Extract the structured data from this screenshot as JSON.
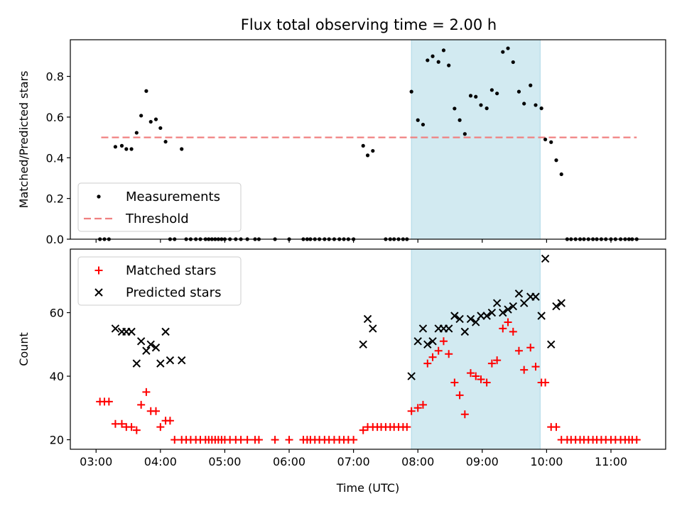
{
  "title": "Flux total observing time = 2.00 h",
  "colors": {
    "band": "#add8e6",
    "threshold": "#f08080",
    "matched": "#ff0000",
    "predicted": "#000000",
    "measure": "#000000"
  },
  "chart_data": [
    {
      "type": "scatter",
      "ylabel": "Matched/Predicted stars",
      "ylim": [
        0,
        0.98
      ],
      "yticks": [
        "0.0",
        "0.2",
        "0.4",
        "0.6",
        "0.8"
      ],
      "ytick_values": [
        0,
        0.2,
        0.4,
        0.6,
        0.8
      ],
      "xlim": [
        2.6,
        11.85
      ],
      "highlight_band": [
        7.9,
        9.9
      ],
      "legend": {
        "position": "lower-left",
        "entries": [
          "Measurements",
          "Threshold"
        ]
      },
      "threshold": {
        "name": "Threshold",
        "value": 0.5,
        "x_range": [
          3.08,
          11.4
        ]
      },
      "series": [
        {
          "name": "Measurements",
          "x": [
            3.06,
            3.13,
            3.2,
            3.3,
            3.4,
            3.47,
            3.55,
            3.63,
            3.7,
            3.78,
            3.85,
            3.93,
            4.0,
            4.08,
            4.15,
            4.22,
            4.33,
            4.4,
            4.47,
            4.55,
            4.62,
            4.7,
            4.75,
            4.8,
            4.85,
            4.9,
            4.95,
            5.0,
            5.08,
            5.17,
            5.25,
            5.35,
            5.47,
            5.53,
            5.78,
            6.0,
            6.22,
            6.28,
            6.33,
            6.4,
            6.47,
            6.55,
            6.62,
            6.7,
            6.78,
            6.85,
            6.92,
            7.0,
            7.15,
            7.22,
            7.3,
            7.5,
            7.57,
            7.63,
            7.7,
            7.77,
            7.83,
            7.9,
            8.0,
            8.08,
            8.15,
            8.23,
            8.32,
            8.4,
            8.48,
            8.57,
            8.65,
            8.73,
            8.82,
            8.9,
            8.98,
            9.07,
            9.15,
            9.23,
            9.32,
            9.4,
            9.48,
            9.57,
            9.65,
            9.75,
            9.83,
            9.92,
            9.98,
            10.07,
            10.15,
            10.23,
            10.32,
            10.38,
            10.45,
            10.52,
            10.58,
            10.65,
            10.72,
            10.78,
            10.85,
            10.92,
            11.0,
            11.07,
            11.15,
            11.22,
            11.28,
            11.33,
            11.4
          ],
          "y": [
            0,
            0,
            0,
            0.454,
            0.459,
            0.443,
            0.443,
            0.523,
            0.607,
            0.728,
            0.577,
            0.589,
            0.546,
            0.479,
            0,
            0,
            0.443,
            0,
            0,
            0,
            0,
            0,
            0,
            0,
            0,
            0,
            0,
            0,
            0,
            0,
            0,
            0,
            0,
            0,
            0,
            0,
            0,
            0,
            0,
            0,
            0,
            0,
            0,
            0,
            0,
            0,
            0,
            0,
            0.459,
            0.412,
            0.434,
            0,
            0,
            0,
            0,
            0,
            0,
            0.725,
            0.585,
            0.563,
            0.879,
            0.899,
            0.871,
            0.928,
            0.854,
            0.642,
            0.585,
            0.517,
            0.705,
            0.7,
            0.659,
            0.643,
            0.733,
            0.716,
            0.92,
            0.938,
            0.87,
            0.725,
            0.666,
            0.756,
            0.659,
            0.643,
            0.49,
            0.477,
            0.388,
            0.319,
            0,
            0,
            0,
            0,
            0,
            0,
            0,
            0,
            0,
            0,
            0,
            0,
            0,
            0,
            0,
            0,
            0
          ]
        }
      ]
    },
    {
      "type": "scatter",
      "xlabel": "Time (UTC)",
      "ylabel": "Count",
      "ylim": [
        17,
        80
      ],
      "yticks": [
        "20",
        "40",
        "60"
      ],
      "ytick_values": [
        20,
        40,
        60
      ],
      "xlim": [
        2.6,
        11.85
      ],
      "xticks": [
        "03:00",
        "04:00",
        "05:00",
        "06:00",
        "07:00",
        "08:00",
        "09:00",
        "10:00",
        "11:00"
      ],
      "xtick_values": [
        3,
        4,
        5,
        6,
        7,
        8,
        9,
        10,
        11
      ],
      "highlight_band": [
        7.9,
        9.9
      ],
      "legend": {
        "position": "top-left",
        "entries": [
          "Matched stars",
          "Predicted stars"
        ]
      },
      "series": [
        {
          "name": "Matched stars",
          "x": [
            3.06,
            3.13,
            3.2,
            3.3,
            3.4,
            3.47,
            3.55,
            3.63,
            3.7,
            3.78,
            3.85,
            3.93,
            4.0,
            4.08,
            4.15,
            4.22,
            4.33,
            4.4,
            4.47,
            4.55,
            4.62,
            4.7,
            4.75,
            4.8,
            4.85,
            4.9,
            4.95,
            5.0,
            5.08,
            5.17,
            5.25,
            5.35,
            5.47,
            5.53,
            5.78,
            6.0,
            6.22,
            6.28,
            6.33,
            6.4,
            6.47,
            6.55,
            6.62,
            6.7,
            6.78,
            6.85,
            6.92,
            7.0,
            7.15,
            7.22,
            7.3,
            7.37,
            7.43,
            7.5,
            7.57,
            7.63,
            7.7,
            7.77,
            7.83,
            7.9,
            8.0,
            8.08,
            8.15,
            8.23,
            8.32,
            8.4,
            8.48,
            8.57,
            8.65,
            8.73,
            8.82,
            8.9,
            8.98,
            9.07,
            9.15,
            9.23,
            9.32,
            9.4,
            9.48,
            9.57,
            9.65,
            9.75,
            9.83,
            9.92,
            9.98,
            10.07,
            10.15,
            10.23,
            10.32,
            10.38,
            10.45,
            10.52,
            10.58,
            10.65,
            10.72,
            10.78,
            10.85,
            10.92,
            11.0,
            11.07,
            11.15,
            11.22,
            11.28,
            11.33,
            11.4
          ],
          "y": [
            32,
            32,
            32,
            25,
            25,
            24,
            24,
            23,
            31,
            35,
            29,
            29,
            24,
            26,
            26,
            20,
            20,
            20,
            20,
            20,
            20,
            20,
            20,
            20,
            20,
            20,
            20,
            20,
            20,
            20,
            20,
            20,
            20,
            20,
            20,
            20,
            20,
            20,
            20,
            20,
            20,
            20,
            20,
            20,
            20,
            20,
            20,
            20,
            23,
            24,
            24,
            24,
            24,
            24,
            24,
            24,
            24,
            24,
            24,
            29,
            30,
            31,
            44,
            46,
            48,
            51,
            47,
            38,
            34,
            28,
            41,
            40,
            39,
            38,
            44,
            45,
            55,
            57,
            54,
            48,
            42,
            49,
            43,
            38,
            38,
            24,
            24,
            20,
            20,
            20,
            20,
            20,
            20,
            20,
            20,
            20,
            20,
            20,
            20,
            20,
            20,
            20,
            20,
            20,
            20
          ]
        },
        {
          "name": "Predicted stars",
          "x": [
            3.3,
            3.4,
            3.47,
            3.55,
            3.63,
            3.7,
            3.78,
            3.85,
            3.93,
            4.0,
            4.08,
            4.15,
            4.33,
            7.15,
            7.22,
            7.3,
            7.9,
            8.0,
            8.08,
            8.15,
            8.23,
            8.32,
            8.4,
            8.48,
            8.57,
            8.65,
            8.73,
            8.82,
            8.9,
            8.98,
            9.07,
            9.15,
            9.23,
            9.32,
            9.4,
            9.48,
            9.57,
            9.65,
            9.75,
            9.83,
            9.92,
            9.98,
            10.07,
            10.15,
            10.23
          ],
          "y": [
            55,
            54,
            54,
            54,
            44,
            51,
            48,
            50,
            49,
            44,
            54,
            45,
            45,
            50,
            58,
            55,
            40,
            51,
            55,
            50,
            51,
            55,
            55,
            55,
            59,
            58,
            54,
            58,
            57,
            59,
            59,
            60,
            63,
            60,
            61,
            62,
            66,
            63,
            65,
            65,
            59,
            77,
            50,
            62,
            63
          ]
        }
      ]
    }
  ]
}
